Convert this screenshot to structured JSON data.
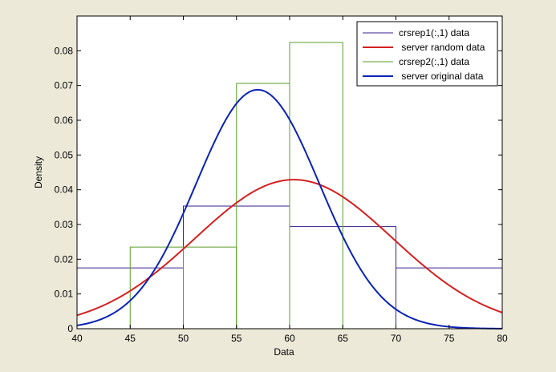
{
  "figure": {
    "background_color": "#ece9d8",
    "axes_color": "#ffffff"
  },
  "chart_data": {
    "type": "bar",
    "xlabel": "Data",
    "ylabel": "Density",
    "xlim": [
      40,
      80
    ],
    "ylim": [
      0,
      0.09
    ],
    "grid": false,
    "legend_placement": "top-right",
    "xticks": [
      40,
      45,
      50,
      55,
      60,
      65,
      70,
      75,
      80
    ],
    "yticks": [
      0,
      0.01,
      0.02,
      0.03,
      0.04,
      0.05,
      0.06,
      0.07,
      0.08
    ],
    "xtick_labels": [
      "40",
      "45",
      "50",
      "55",
      "60",
      "65",
      "70",
      "75",
      "80"
    ],
    "ytick_labels": [
      "0",
      "0.01",
      "0.02",
      "0.03",
      "0.04",
      "0.05",
      "0.06",
      "0.07",
      "0.08"
    ],
    "series": [
      {
        "name": "crsrep1(:,1) data",
        "kind": "histogram",
        "color": "#3b1f8f",
        "bin_edges": [
          40,
          50,
          60,
          70,
          80
        ],
        "values": [
          0.0175,
          0.0353,
          0.0294,
          0.0175
        ]
      },
      {
        "name": " server random data",
        "kind": "normal_pdf_line",
        "color": "#d42020",
        "mean": 60.4,
        "std": 9.3,
        "x_range": [
          40,
          80
        ]
      },
      {
        "name": "crsrep2(:,1) data",
        "kind": "histogram",
        "color": "#5a9e28",
        "bin_edges": [
          45,
          50,
          55,
          60,
          65
        ],
        "values": [
          0.0235,
          0.0235,
          0.0706,
          0.0824
        ]
      },
      {
        "name": " server original data",
        "kind": "normal_pdf_line",
        "color": "#0a23b4",
        "mean": 57,
        "std": 5.8,
        "x_range": [
          40,
          80
        ]
      }
    ]
  }
}
